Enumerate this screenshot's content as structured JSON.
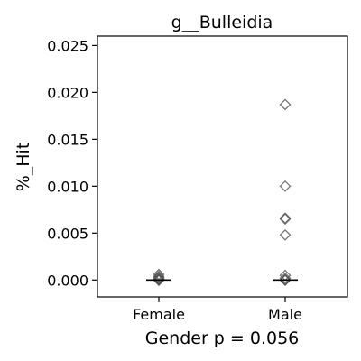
{
  "chart_data": {
    "type": "scatter",
    "title": "g__Bulleidia",
    "xlabel": "Gender p = 0.056",
    "ylabel": "%_Hit",
    "categories": [
      "Female",
      "Male"
    ],
    "ylim": [
      -0.0018,
      0.026
    ],
    "yticks": [
      0.0,
      0.005,
      0.01,
      0.015,
      0.02,
      0.025
    ],
    "ytick_labels": [
      "0.000",
      "0.005",
      "0.010",
      "0.015",
      "0.020",
      "0.025"
    ],
    "grid": false,
    "legend": "none",
    "median_color": "#000000",
    "marker": "diamond",
    "marker_color": "#555555",
    "series": [
      {
        "category": "Female",
        "values": [
          0.0,
          0.0,
          0.0,
          0.0,
          0.0,
          0.0,
          0.0,
          0.0,
          0.0001,
          0.0002,
          0.0003,
          0.0004,
          0.0006
        ],
        "median": 0.0
      },
      {
        "category": "Male",
        "values": [
          0.0,
          0.0,
          0.0,
          0.0,
          0.0,
          0.0,
          0.0,
          0.0002,
          0.0005,
          0.0048,
          0.0065,
          0.0066,
          0.01,
          0.0187
        ],
        "median": 0.0
      }
    ]
  }
}
